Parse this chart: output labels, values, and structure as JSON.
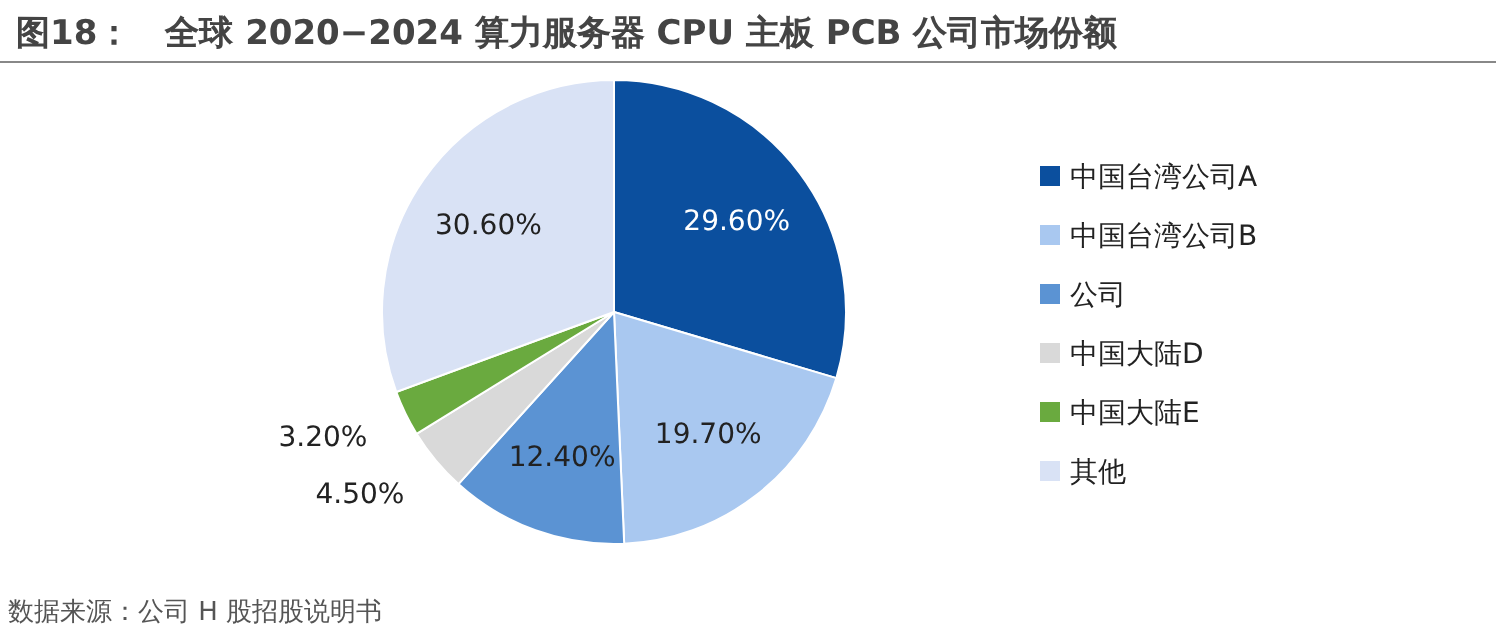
{
  "chart_data": {
    "type": "pie",
    "title": "图18：　全球 2020−2024 算力服务器 CPU 主板 PCB 公司市场份额",
    "categories": [
      "中国台湾公司A",
      "中国台湾公司B",
      "公司",
      "中国大陆D",
      "中国大陆E",
      "其他"
    ],
    "values": [
      29.6,
      19.7,
      12.4,
      4.5,
      3.2,
      30.6
    ],
    "value_labels": [
      "29.60%",
      "19.70%",
      "12.40%",
      "4.50%",
      "3.20%",
      "30.60%"
    ],
    "colors": [
      "#0b4f9e",
      "#a9c8f0",
      "#5b93d3",
      "#d9d9d9",
      "#6aaa3f",
      "#d9e2f5"
    ],
    "legend": "right",
    "annotations": [
      "数据来源：公司 H 股招股说明书"
    ]
  }
}
